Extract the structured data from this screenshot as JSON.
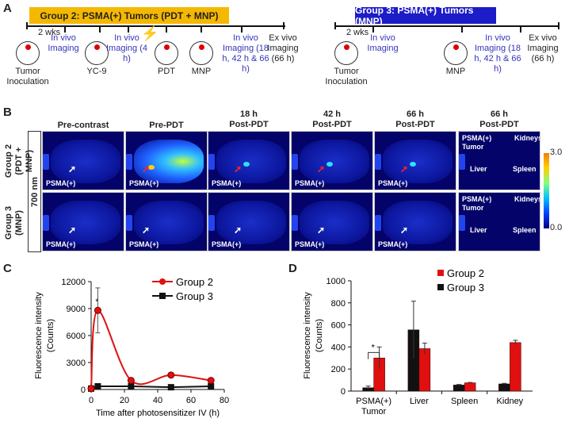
{
  "panelA": {
    "label": "A",
    "group2": {
      "title": "Group 2: PSMA(+) Tumors  (PDT + MNP)",
      "color": "#f5b800",
      "steps": [
        "Tumor Inoculation",
        "In vivo Imaging",
        "YC-9",
        "In vivo Imaging (4 h)",
        "PDT",
        "MNP",
        "In vivo Imaging (18 h, 42 h & 66 h)",
        "Ex vivo Imaging (66 h)"
      ],
      "interval": "2 wks"
    },
    "group3": {
      "title": "Group 3: PSMA(+) Tumors (MNP)",
      "color": "#1c1cc8",
      "steps": [
        "Tumor Inoculation",
        "In vivo Imaging",
        "MNP",
        "In vivo Imaging (18 h, 42 h & 66 h)",
        "Ex vivo Imaging (66 h)"
      ],
      "interval": "2 wks"
    }
  },
  "panelB": {
    "label": "B",
    "columns": [
      "Pre-contrast",
      "Pre-PDT",
      "18 h Post-PDT",
      "42 h Post-PDT",
      "66 h Post-PDT",
      "66 h Post-PDT"
    ],
    "rows": [
      "Group 2 (PDT + MNP)",
      "Group 3 (MNP)"
    ],
    "channel": "700 nm",
    "tumor_label": "PSMA(+)",
    "organs": {
      "tumor": "PSMA(+) Tumor",
      "kidneys": "Kidneys",
      "liver": "Liver",
      "spleen": "Spleen"
    },
    "colorbar": {
      "max": "3.0",
      "min": "0.0"
    }
  },
  "chart_data": [
    {
      "panel": "C",
      "type": "line",
      "xlabel": "Time after photosensitizer IV (h)",
      "ylabel": "Fluorescence intensity (Counts)",
      "xlim": [
        0,
        80
      ],
      "ylim": [
        0,
        12000
      ],
      "xticks": [
        0,
        20,
        40,
        60,
        80
      ],
      "yticks": [
        0,
        3000,
        6000,
        9000,
        12000
      ],
      "legend": "top-right",
      "annotation": "*",
      "series": [
        {
          "name": "Group 2",
          "color": "#e01010",
          "x": [
            0,
            4,
            24,
            48,
            72
          ],
          "y": [
            100,
            8800,
            1000,
            1600,
            1000
          ],
          "err": [
            0,
            2500,
            0,
            0,
            0
          ]
        },
        {
          "name": "Group 3",
          "color": "#111111",
          "x": [
            0,
            4,
            24,
            48,
            72
          ],
          "y": [
            100,
            350,
            350,
            250,
            350
          ],
          "err": [
            0,
            0,
            0,
            0,
            0
          ]
        }
      ]
    },
    {
      "panel": "D",
      "type": "bar",
      "ylabel": "Fluorescence intensity (Counts)",
      "ylim": [
        0,
        1000
      ],
      "yticks": [
        0,
        200,
        400,
        600,
        800,
        1000
      ],
      "categories": [
        "PSMA(+) Tumor",
        "Liver",
        "Spleen",
        "Kidney"
      ],
      "legend": "top-right",
      "annotation": "*",
      "series": [
        {
          "name": "Group 2",
          "color": "#e01010",
          "values": [
            300,
            385,
            75,
            440
          ],
          "err": [
            100,
            50,
            3,
            20
          ]
        },
        {
          "name": "Group 3",
          "color": "#111111",
          "values": [
            30,
            555,
            55,
            65
          ],
          "err": [
            15,
            260,
            5,
            5
          ]
        }
      ]
    }
  ]
}
